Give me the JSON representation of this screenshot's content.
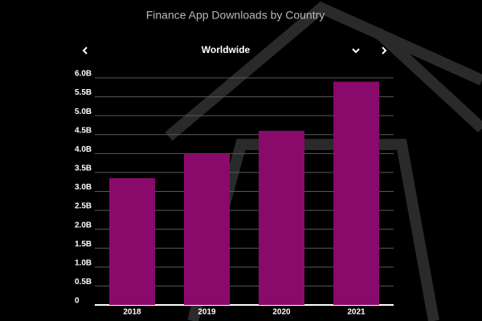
{
  "header": {
    "title": "Finance App Downloads by Country",
    "region": "Worldwide"
  },
  "chart_data": {
    "type": "bar",
    "categories": [
      "2018",
      "2019",
      "2020",
      "2021"
    ],
    "values": [
      3.35,
      4.0,
      4.6,
      5.9
    ],
    "color": "#8a0a6b",
    "ylim": [
      0,
      6
    ],
    "yticks": [
      0,
      {
        "value": 0.5,
        "label": "0.5B"
      },
      {
        "value": 1,
        "label": "1.0B"
      },
      {
        "value": 1.5,
        "label": "1.5B"
      },
      {
        "value": 2,
        "label": "2.0B"
      },
      {
        "value": 2.5,
        "label": "2.5B"
      },
      {
        "value": 3,
        "label": "3.0B"
      },
      {
        "value": 3.5,
        "label": "3.5B"
      },
      {
        "value": 4,
        "label": "4.0B"
      },
      {
        "value": 4.5,
        "label": "4.5B"
      },
      {
        "value": 5,
        "label": "5.0B"
      },
      {
        "value": 5.5,
        "label": "5.5B"
      },
      {
        "value": 6,
        "label": "6.0B"
      }
    ],
    "grid": true
  }
}
